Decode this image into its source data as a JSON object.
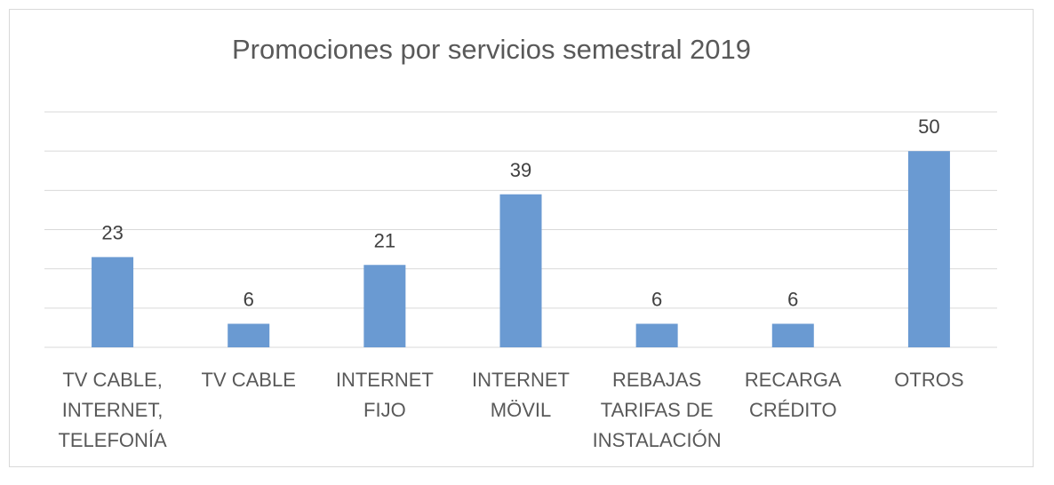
{
  "chart_data": {
    "type": "bar",
    "title": "Promociones por servicios semestral 2019",
    "categories": [
      [
        "TV CABLE,",
        "INTERNET,",
        "TELEFONÍA"
      ],
      [
        "TV CABLE"
      ],
      [
        "INTERNET",
        "FIJO"
      ],
      [
        "INTERNET",
        "MÖVIL"
      ],
      [
        "REBAJAS",
        "TARIFAS DE",
        "INSTALACIÓN"
      ],
      [
        "RECARGA",
        "CRÉDITO"
      ],
      [
        "OTROS"
      ]
    ],
    "values": [
      23,
      6,
      21,
      39,
      6,
      6,
      50
    ],
    "ylim": [
      0,
      60
    ],
    "grid": true,
    "legend": "none",
    "bar_color": "#6a9ad2",
    "gridline_color": "#d9d9d9"
  }
}
